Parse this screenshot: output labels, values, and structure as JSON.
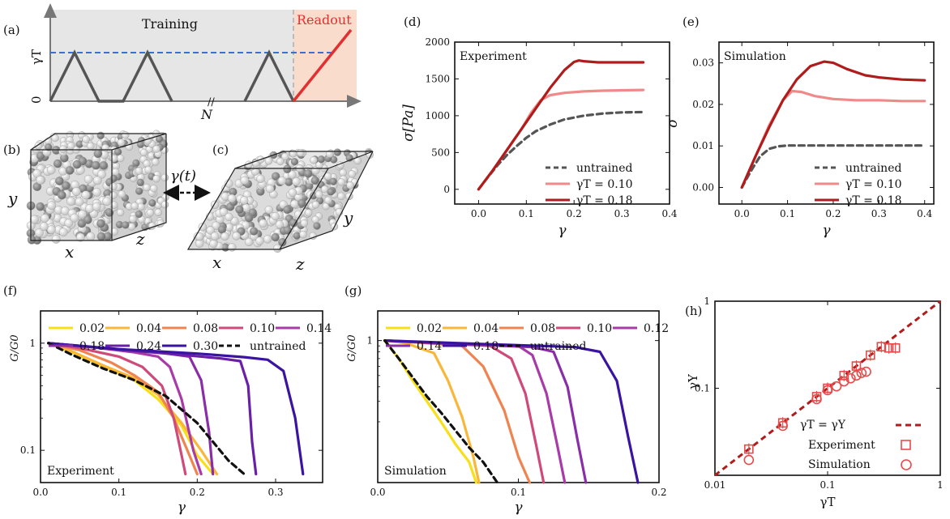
{
  "panel_labels": {
    "a": "(a)",
    "b": "(b)",
    "c": "(c)",
    "d": "(d)",
    "e": "(e)",
    "f": "(f)",
    "g": "(g)",
    "h": "(h)"
  },
  "schematic": {
    "training_label": "Training",
    "readout_label": "Readout",
    "y_label": "γT",
    "y_zero": "0",
    "x_label": "N",
    "gamma_t_label": "γ(t)",
    "axis_x": "x",
    "axis_y": "y",
    "axis_z": "z",
    "colors": {
      "training_bg": "#e6e6e6",
      "readout_bg": "#f9dccc",
      "triangle": "#555555",
      "dashed": "#3b6fd1",
      "readout_line": "#e23030"
    }
  },
  "chart_data": [
    {
      "id": "d",
      "type": "line",
      "title": "Experiment",
      "xlabel": "γ",
      "ylabel": "σ[Pa]",
      "xlim": [
        -0.05,
        0.4
      ],
      "ylim": [
        -200,
        2000
      ],
      "xticks": [
        "0.0",
        "0.1",
        "0.2",
        "0.3",
        "0.4"
      ],
      "xtick_values": [
        0,
        0.1,
        0.2,
        0.3,
        0.4
      ],
      "yticks": [
        "0",
        "500",
        "1000",
        "1500",
        "2000"
      ],
      "ytick_values": [
        0,
        500,
        1000,
        1500,
        2000
      ],
      "legend": [
        "untrained",
        "γT = 0.10",
        "γT = 0.18"
      ],
      "series": [
        {
          "name": "untrained",
          "color": "#555555",
          "dashed": true,
          "x": [
            0,
            0.02,
            0.04,
            0.06,
            0.08,
            0.1,
            0.12,
            0.15,
            0.18,
            0.22,
            0.26,
            0.3,
            0.345
          ],
          "y": [
            0,
            170,
            330,
            470,
            590,
            700,
            790,
            880,
            950,
            1000,
            1030,
            1045,
            1050
          ]
        },
        {
          "name": "γT = 0.10",
          "color": "#f08a8a",
          "dashed": false,
          "x": [
            0,
            0.03,
            0.06,
            0.09,
            0.11,
            0.13,
            0.15,
            0.18,
            0.22,
            0.26,
            0.3,
            0.345
          ],
          "y": [
            0,
            260,
            540,
            820,
            1040,
            1210,
            1280,
            1310,
            1330,
            1340,
            1345,
            1350
          ]
        },
        {
          "name": "γT = 0.18",
          "color": "#b01c1c",
          "dashed": false,
          "x": [
            0,
            0.03,
            0.06,
            0.09,
            0.12,
            0.15,
            0.18,
            0.2,
            0.21,
            0.22,
            0.25,
            0.3,
            0.345
          ],
          "y": [
            0,
            260,
            540,
            820,
            1100,
            1380,
            1620,
            1730,
            1750,
            1740,
            1725,
            1725,
            1725
          ]
        }
      ]
    },
    {
      "id": "e",
      "type": "line",
      "title": "Simulation",
      "xlabel": "γ",
      "ylabel": "σ",
      "xlim": [
        -0.05,
        0.42
      ],
      "ylim": [
        -0.004,
        0.035
      ],
      "xticks": [
        "0.0",
        "0.1",
        "0.2",
        "0.3",
        "0.4"
      ],
      "xtick_values": [
        0,
        0.1,
        0.2,
        0.3,
        0.4
      ],
      "yticks": [
        "0.00",
        "0.01",
        "0.02",
        "0.03"
      ],
      "ytick_values": [
        0,
        0.01,
        0.02,
        0.03
      ],
      "legend": [
        "untrained",
        "γT = 0.10",
        "γT = 0.18"
      ],
      "series": [
        {
          "name": "untrained",
          "color": "#555555",
          "dashed": true,
          "x": [
            0,
            0.02,
            0.04,
            0.06,
            0.08,
            0.1,
            0.15,
            0.2,
            0.3,
            0.4
          ],
          "y": [
            0,
            0.004,
            0.0075,
            0.0093,
            0.0099,
            0.0101,
            0.0101,
            0.0101,
            0.0101,
            0.0101
          ]
        },
        {
          "name": "γT = 0.10",
          "color": "#f08a8a",
          "dashed": false,
          "x": [
            0,
            0.03,
            0.06,
            0.09,
            0.11,
            0.13,
            0.16,
            0.2,
            0.25,
            0.3,
            0.35,
            0.4
          ],
          "y": [
            0,
            0.0075,
            0.015,
            0.021,
            0.0232,
            0.023,
            0.022,
            0.0213,
            0.021,
            0.021,
            0.0208,
            0.0208
          ]
        },
        {
          "name": "γT = 0.18",
          "color": "#b01c1c",
          "dashed": false,
          "x": [
            0,
            0.03,
            0.06,
            0.09,
            0.12,
            0.15,
            0.18,
            0.2,
            0.23,
            0.27,
            0.3,
            0.35,
            0.4
          ],
          "y": [
            0,
            0.0075,
            0.0145,
            0.021,
            0.026,
            0.0292,
            0.0303,
            0.03,
            0.0285,
            0.027,
            0.0265,
            0.026,
            0.0258
          ]
        }
      ]
    },
    {
      "id": "f",
      "type": "line",
      "title": "Experiment",
      "yscale": "log",
      "xlabel": "γ",
      "ylabel": "G/G0",
      "xlim": [
        0,
        0.36
      ],
      "ylim": [
        0.05,
        2.0
      ],
      "xticks": [
        "0.0",
        "0.1",
        "0.2",
        "0.3"
      ],
      "xtick_values": [
        0,
        0.1,
        0.2,
        0.3
      ],
      "yticks": [
        "1",
        "0.1"
      ],
      "ytick_values": [
        1,
        0.1
      ],
      "legend": [
        "0.02",
        "0.04",
        "0.08",
        "0.10",
        "0.14",
        "0.18",
        "0.24",
        "0.30",
        "untrained"
      ],
      "series": [
        {
          "name": "0.02",
          "color": "#f7e01a",
          "x": [
            0.01,
            0.04,
            0.08,
            0.12,
            0.15,
            0.18,
            0.2,
            0.22
          ],
          "y": [
            1.0,
            0.82,
            0.6,
            0.45,
            0.3,
            0.17,
            0.09,
            0.06
          ]
        },
        {
          "name": "0.04",
          "color": "#f9b73a",
          "x": [
            0.01,
            0.04,
            0.08,
            0.12,
            0.15,
            0.18,
            0.205,
            0.225
          ],
          "y": [
            1.0,
            0.84,
            0.62,
            0.47,
            0.33,
            0.18,
            0.1,
            0.06
          ]
        },
        {
          "name": "0.08",
          "color": "#f08450",
          "x": [
            0.01,
            0.05,
            0.09,
            0.12,
            0.15,
            0.17,
            0.19,
            0.2
          ],
          "y": [
            1.0,
            0.86,
            0.66,
            0.5,
            0.35,
            0.2,
            0.09,
            0.06
          ]
        },
        {
          "name": "0.10",
          "color": "#cf4a7a",
          "x": [
            0.01,
            0.05,
            0.1,
            0.13,
            0.155,
            0.17,
            0.18,
            0.185
          ],
          "y": [
            1.0,
            0.9,
            0.75,
            0.6,
            0.4,
            0.2,
            0.09,
            0.06
          ]
        },
        {
          "name": "0.14",
          "color": "#a83ba8",
          "x": [
            0.01,
            0.06,
            0.12,
            0.15,
            0.165,
            0.18,
            0.195,
            0.205
          ],
          "y": [
            1.0,
            0.93,
            0.82,
            0.75,
            0.6,
            0.3,
            0.1,
            0.06
          ]
        },
        {
          "name": "0.18",
          "color": "#8a2ea8",
          "x": [
            0.01,
            0.08,
            0.15,
            0.19,
            0.205,
            0.215,
            0.22
          ],
          "y": [
            1.0,
            0.9,
            0.82,
            0.75,
            0.45,
            0.15,
            0.06
          ]
        },
        {
          "name": "0.24",
          "color": "#6a1fa8",
          "x": [
            0.01,
            0.1,
            0.18,
            0.23,
            0.255,
            0.265,
            0.27,
            0.275
          ],
          "y": [
            1.0,
            0.87,
            0.78,
            0.72,
            0.68,
            0.4,
            0.12,
            0.06
          ]
        },
        {
          "name": "0.30",
          "color": "#3a14a0",
          "x": [
            0.01,
            0.1,
            0.2,
            0.26,
            0.29,
            0.31,
            0.325,
            0.335
          ],
          "y": [
            1.0,
            0.88,
            0.8,
            0.74,
            0.7,
            0.55,
            0.2,
            0.06
          ]
        },
        {
          "name": "untrained",
          "color": "#111111",
          "dashed": true,
          "x": [
            0.01,
            0.04,
            0.08,
            0.12,
            0.16,
            0.2,
            0.22,
            0.24,
            0.26
          ],
          "y": [
            1.0,
            0.78,
            0.58,
            0.45,
            0.32,
            0.18,
            0.12,
            0.08,
            0.06
          ]
        }
      ]
    },
    {
      "id": "g",
      "type": "line",
      "title": "Simulation",
      "yscale": "log",
      "xlabel": "γ",
      "ylabel": "G/G0",
      "xlim": [
        0,
        0.2
      ],
      "ylim": [
        0.06,
        1.8
      ],
      "xticks": [
        "0.0",
        "0.1",
        "0.2"
      ],
      "xtick_values": [
        0,
        0.1,
        0.2
      ],
      "yticks": [
        "1"
      ],
      "ytick_values": [
        1
      ],
      "legend": [
        "0.02",
        "0.04",
        "0.08",
        "0.10",
        "0.12",
        "0.14",
        "0.18",
        "untrained"
      ],
      "series": [
        {
          "name": "0.02",
          "color": "#f7e01a",
          "x": [
            0.005,
            0.015,
            0.025,
            0.035,
            0.045,
            0.055,
            0.065,
            0.07
          ],
          "y": [
            1.0,
            0.7,
            0.45,
            0.3,
            0.2,
            0.13,
            0.09,
            0.06
          ]
        },
        {
          "name": "0.04",
          "color": "#f9b73a",
          "x": [
            0.005,
            0.02,
            0.04,
            0.05,
            0.06,
            0.068,
            0.072
          ],
          "y": [
            1.0,
            0.95,
            0.78,
            0.45,
            0.22,
            0.1,
            0.06
          ]
        },
        {
          "name": "0.08",
          "color": "#f08450",
          "x": [
            0.005,
            0.03,
            0.06,
            0.075,
            0.09,
            0.1,
            0.108
          ],
          "y": [
            1.0,
            0.96,
            0.9,
            0.6,
            0.25,
            0.1,
            0.06
          ]
        },
        {
          "name": "0.10",
          "color": "#cf4a7a",
          "x": [
            0.005,
            0.04,
            0.08,
            0.095,
            0.105,
            0.113,
            0.118
          ],
          "y": [
            1.0,
            0.95,
            0.9,
            0.7,
            0.35,
            0.12,
            0.06
          ]
        },
        {
          "name": "0.12",
          "color": "#a83ba8",
          "x": [
            0.005,
            0.05,
            0.1,
            0.11,
            0.12,
            0.128,
            0.133
          ],
          "y": [
            1.0,
            0.95,
            0.9,
            0.75,
            0.35,
            0.12,
            0.06
          ]
        },
        {
          "name": "0.14",
          "color": "#8a2ea8",
          "x": [
            0.005,
            0.06,
            0.11,
            0.125,
            0.135,
            0.142,
            0.148
          ],
          "y": [
            1.0,
            0.93,
            0.88,
            0.8,
            0.4,
            0.14,
            0.06
          ]
        },
        {
          "name": "0.18",
          "color": "#3a14a0",
          "x": [
            0.005,
            0.08,
            0.14,
            0.158,
            0.17,
            0.178,
            0.185
          ],
          "y": [
            1.0,
            0.93,
            0.88,
            0.8,
            0.45,
            0.15,
            0.06
          ]
        },
        {
          "name": "untrained",
          "color": "#111111",
          "dashed": true,
          "x": [
            0.005,
            0.015,
            0.025,
            0.035,
            0.045,
            0.055,
            0.065,
            0.075,
            0.085
          ],
          "y": [
            1.0,
            0.7,
            0.48,
            0.33,
            0.24,
            0.17,
            0.12,
            0.09,
            0.06
          ]
        }
      ]
    },
    {
      "id": "h",
      "type": "scatter",
      "xscale": "log",
      "yscale": "log",
      "xlabel": "γT",
      "ylabel": "γY",
      "xlim": [
        0.01,
        1
      ],
      "ylim": [
        0.01,
        1
      ],
      "xticks": [
        "0.01",
        "0.1",
        "1"
      ],
      "xtick_values": [
        0.01,
        0.1,
        1
      ],
      "yticks": [
        "0.1",
        "1"
      ],
      "ytick_values": [
        0.1,
        1
      ],
      "legend": [
        "γT = γY",
        "Experiment",
        "Simulation"
      ],
      "identity_line_color": "#b01c1c",
      "marker_color": "#e84a4a",
      "series": [
        {
          "name": "Experiment",
          "marker": "square",
          "x": [
            0.02,
            0.04,
            0.08,
            0.1,
            0.14,
            0.18,
            0.24,
            0.3,
            0.35,
            0.4
          ],
          "y": [
            0.02,
            0.04,
            0.08,
            0.1,
            0.14,
            0.18,
            0.24,
            0.3,
            0.29,
            0.29
          ]
        },
        {
          "name": "Simulation",
          "marker": "circle",
          "x": [
            0.02,
            0.04,
            0.08,
            0.1,
            0.12,
            0.14,
            0.16,
            0.18,
            0.2,
            0.22
          ],
          "y": [
            0.015,
            0.037,
            0.075,
            0.095,
            0.105,
            0.12,
            0.13,
            0.14,
            0.15,
            0.155
          ]
        }
      ]
    }
  ]
}
